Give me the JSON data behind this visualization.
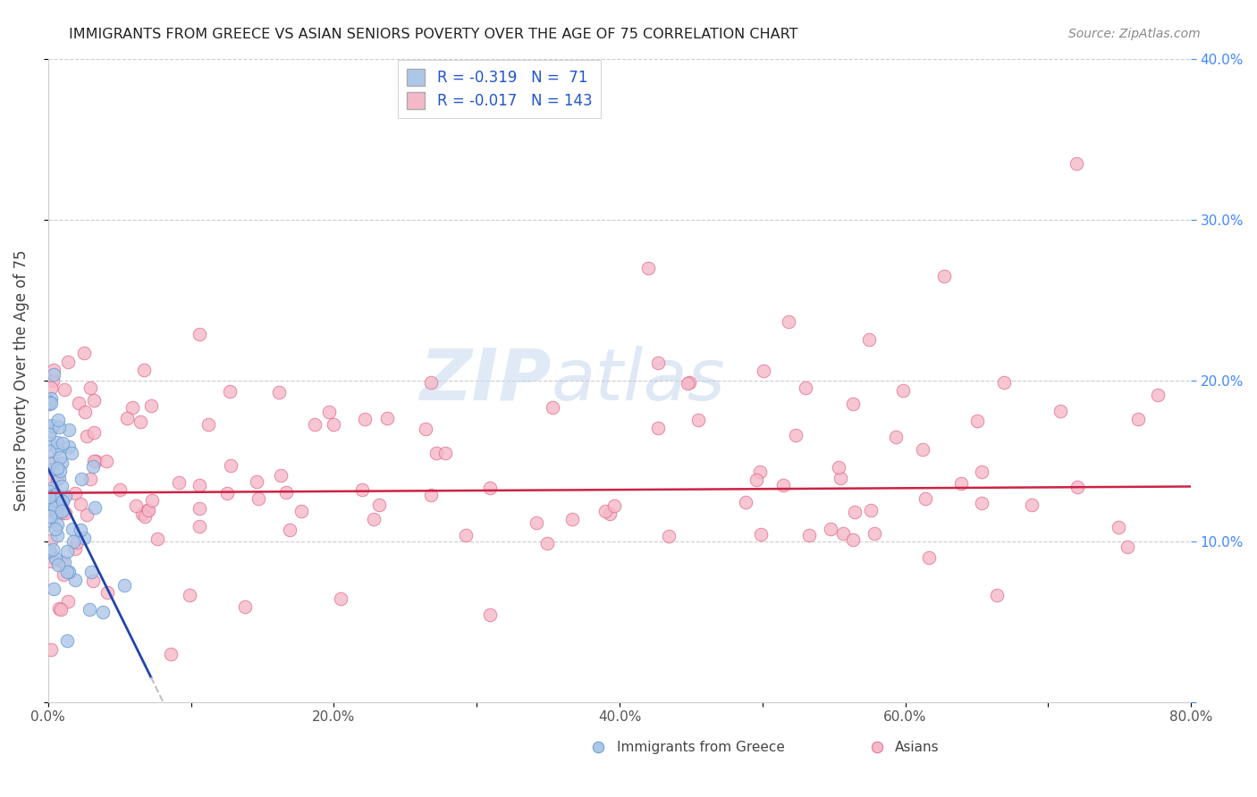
{
  "title": "IMMIGRANTS FROM GREECE VS ASIAN SENIORS POVERTY OVER THE AGE OF 75 CORRELATION CHART",
  "source": "Source: ZipAtlas.com",
  "ylabel": "Seniors Poverty Over the Age of 75",
  "xlim": [
    0.0,
    0.8
  ],
  "ylim": [
    0.0,
    0.4
  ],
  "xticks": [
    0.0,
    0.1,
    0.2,
    0.3,
    0.4,
    0.5,
    0.6,
    0.7,
    0.8
  ],
  "yticks": [
    0.0,
    0.1,
    0.2,
    0.3,
    0.4
  ],
  "xticklabels": [
    "0.0%",
    "",
    "20.0%",
    "",
    "40.0%",
    "",
    "60.0%",
    "",
    "80.0%"
  ],
  "yticklabels_right": [
    "",
    "10.0%",
    "20.0%",
    "30.0%",
    "40.0%"
  ],
  "greece_color": "#aec6e8",
  "asia_color": "#f5b8c8",
  "greece_edge": "#6699cc",
  "asia_edge": "#e07090",
  "greece_line_color": "#2244aa",
  "asia_line_color": "#cc2244",
  "dashed_line_color": "#c0c0c0",
  "legend_R_greece": "R = -0.319",
  "legend_N_greece": "N =  71",
  "legend_R_asia": "R = -0.017",
  "legend_N_asia": "N = 143",
  "watermark_zip": "ZIP",
  "watermark_atlas": "atlas",
  "greece_seed": 12,
  "asia_seed": 99
}
